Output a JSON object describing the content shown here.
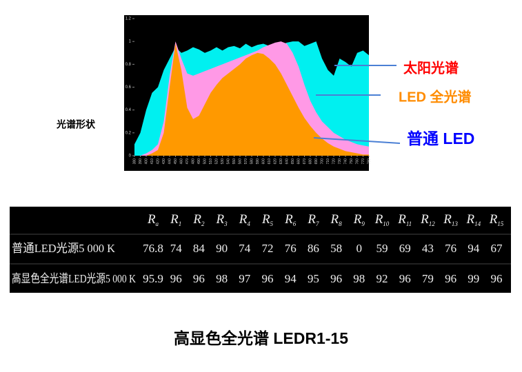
{
  "chart_data": {
    "type": "area",
    "x": [
      380,
      390,
      400,
      410,
      420,
      430,
      440,
      450,
      460,
      470,
      480,
      490,
      500,
      510,
      520,
      530,
      540,
      550,
      560,
      570,
      580,
      590,
      600,
      610,
      620,
      630,
      640,
      650,
      660,
      670,
      680,
      690,
      700,
      710,
      720,
      730,
      740,
      750,
      760,
      770,
      780
    ],
    "series": [
      {
        "name": "太阳光谱",
        "color": "#00f0f0",
        "label_color": "#ff0000",
        "values": [
          0.1,
          0.2,
          0.4,
          0.55,
          0.6,
          0.75,
          0.85,
          0.95,
          0.9,
          0.92,
          0.95,
          0.93,
          0.9,
          0.92,
          0.95,
          0.92,
          0.95,
          0.96,
          0.94,
          0.98,
          0.95,
          0.97,
          0.98,
          0.96,
          0.95,
          0.97,
          0.99,
          1.0,
          1.0,
          0.96,
          0.98,
          1.0,
          0.85,
          0.75,
          0.7,
          0.85,
          0.82,
          0.78,
          0.9,
          0.92,
          0.88
        ]
      },
      {
        "name": "LED 全光谱",
        "color": "#ff99e6",
        "label_color": "#ff8c00",
        "values": [
          0,
          0,
          0.02,
          0.05,
          0.1,
          0.3,
          0.7,
          1.0,
          0.85,
          0.72,
          0.7,
          0.72,
          0.74,
          0.76,
          0.78,
          0.8,
          0.82,
          0.84,
          0.86,
          0.88,
          0.9,
          0.92,
          0.95,
          0.97,
          0.99,
          1.0,
          0.98,
          0.9,
          0.78,
          0.62,
          0.48,
          0.38,
          0.3,
          0.25,
          0.2,
          0.17,
          0.14,
          0.12,
          0.1,
          0.09,
          0.08
        ]
      },
      {
        "name": "普通 LED",
        "color": "#ff9900",
        "label_color": "#0000ff",
        "values": [
          0,
          0,
          0,
          0.02,
          0.05,
          0.2,
          0.6,
          0.98,
          0.75,
          0.42,
          0.32,
          0.35,
          0.45,
          0.55,
          0.62,
          0.68,
          0.72,
          0.76,
          0.8,
          0.85,
          0.88,
          0.9,
          0.89,
          0.85,
          0.8,
          0.72,
          0.62,
          0.52,
          0.42,
          0.33,
          0.26,
          0.2,
          0.15,
          0.11,
          0.08,
          0.06,
          0.04,
          0.03,
          0.02,
          0.01,
          0.01
        ]
      }
    ],
    "xlim": [
      380,
      780
    ],
    "xticks": [
      380,
      390,
      400,
      410,
      420,
      430,
      440,
      450,
      460,
      470,
      480,
      490,
      500,
      510,
      520,
      530,
      540,
      550,
      560,
      570,
      580,
      590,
      600,
      610,
      620,
      630,
      640,
      650,
      660,
      670,
      680,
      690,
      700,
      710,
      720,
      730,
      740,
      750,
      760,
      770,
      780
    ],
    "ylim": [
      0,
      1.2
    ],
    "yticks": [
      0,
      0.2,
      0.4,
      0.6,
      0.8,
      1,
      1.2
    ]
  },
  "side_label": "光谱形状",
  "table": {
    "header": [
      {
        "symbol": "R",
        "sub": "a"
      },
      {
        "symbol": "R",
        "sub": "1"
      },
      {
        "symbol": "R",
        "sub": "2"
      },
      {
        "symbol": "R",
        "sub": "3"
      },
      {
        "symbol": "R",
        "sub": "4"
      },
      {
        "symbol": "R",
        "sub": "5"
      },
      {
        "symbol": "R",
        "sub": "6"
      },
      {
        "symbol": "R",
        "sub": "7"
      },
      {
        "symbol": "R",
        "sub": "8"
      },
      {
        "symbol": "R",
        "sub": "9"
      },
      {
        "symbol": "R",
        "sub": "10"
      },
      {
        "symbol": "R",
        "sub": "11"
      },
      {
        "symbol": "R",
        "sub": "12"
      },
      {
        "symbol": "R",
        "sub": "13"
      },
      {
        "symbol": "R",
        "sub": "14"
      },
      {
        "symbol": "R",
        "sub": "15"
      }
    ],
    "rows": [
      [
        "普通LED光源5 000 K",
        "76.8",
        "74",
        "84",
        "90",
        "74",
        "72",
        "76",
        "86",
        "58",
        "0",
        "59",
        "69",
        "43",
        "76",
        "94",
        "67"
      ],
      [
        "高显色全光谱LED光源5 000 K",
        "95.9",
        "96",
        "96",
        "98",
        "97",
        "96",
        "94",
        "95",
        "96",
        "98",
        "92",
        "96",
        "79",
        "96",
        "99",
        "96"
      ]
    ]
  },
  "caption": "高显色全光谱 LEDR1-15"
}
